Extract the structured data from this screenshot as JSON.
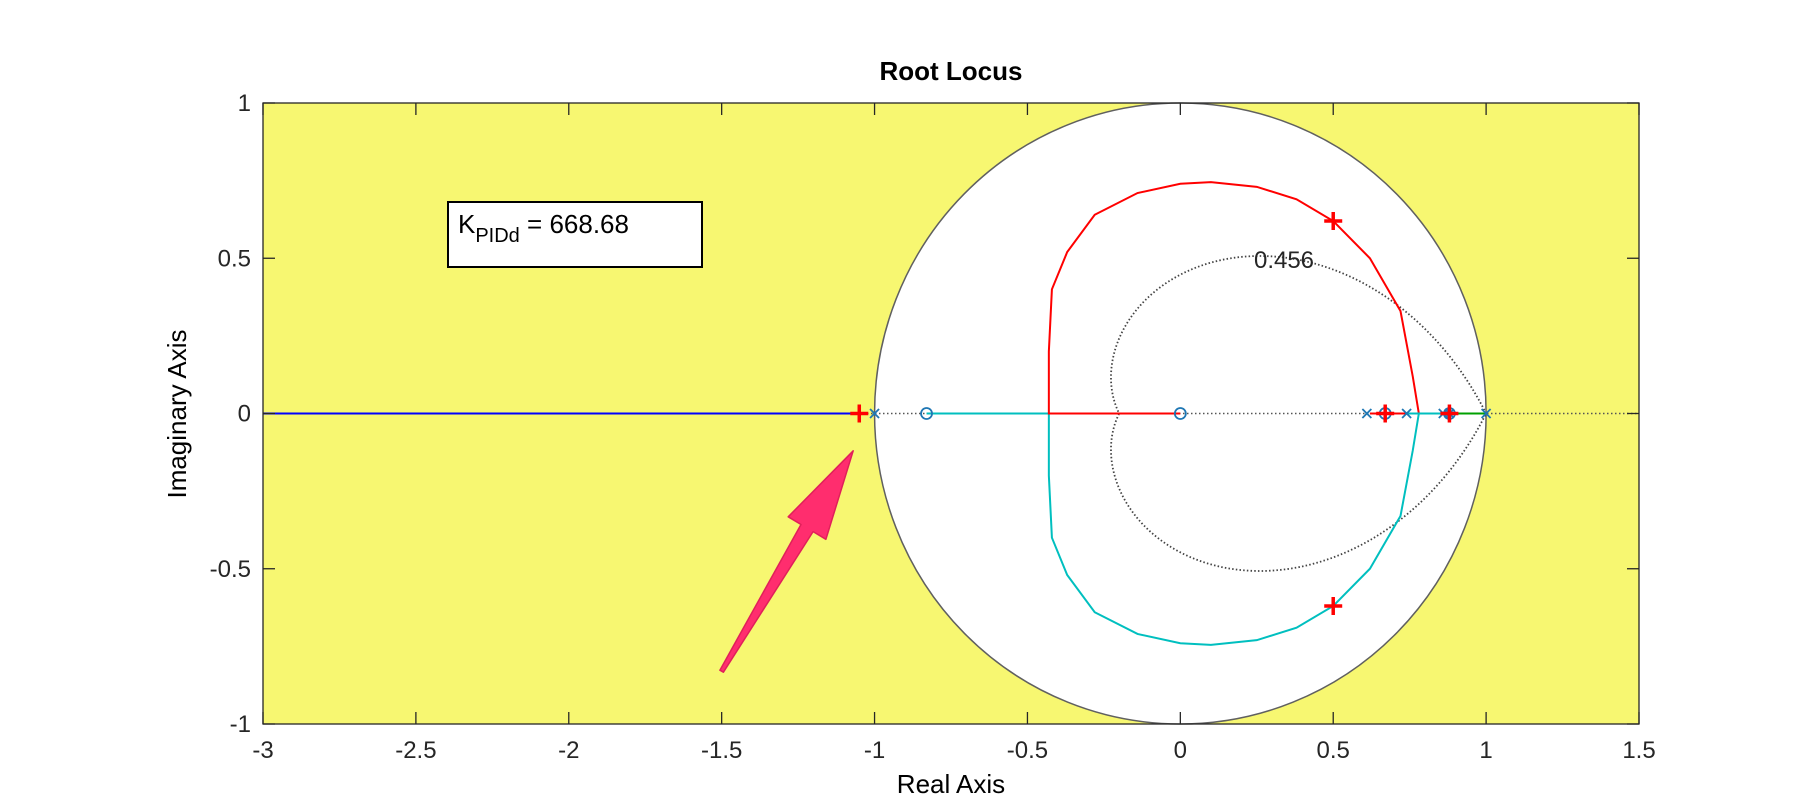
{
  "chart_data": {
    "type": "scatter",
    "title": "Root Locus",
    "xlabel": "Real Axis",
    "ylabel": "Imaginary Axis",
    "xlim": [
      -3,
      1.5
    ],
    "ylim": [
      -1,
      1
    ],
    "xticks": [
      -3,
      -2.5,
      -2,
      -1.5,
      -1,
      -0.5,
      0,
      0.5,
      1,
      1.5
    ],
    "xtick_labels": [
      "-3",
      "-2.5",
      "-2",
      "-1.5",
      "-1",
      "-0.5",
      "0",
      "0.5",
      "1",
      "1.5"
    ],
    "yticks": [
      -1,
      -0.5,
      0,
      0.5,
      1
    ],
    "ytick_labels": [
      "-1",
      "-0.5",
      "0",
      "0.5",
      "1"
    ],
    "grid": false,
    "background_color": "#f7f771",
    "unit_circle": {
      "center": [
        0,
        0
      ],
      "radius": 1,
      "fill": "#ffffff"
    },
    "damping_contour_label": "0.456",
    "annotation": {
      "text_main": "K",
      "text_sub": "PIDd",
      "text_rest": " = 668.68"
    },
    "series": [
      {
        "color": "#0000ff",
        "points": [
          [
            -3,
            0
          ],
          [
            -1.03,
            0
          ]
        ]
      },
      {
        "color": "#00bfbf",
        "points": [
          [
            -0.83,
            0
          ],
          [
            -0.43,
            0
          ],
          [
            -0.43,
            -0.2
          ],
          [
            -0.42,
            -0.4
          ],
          [
            -0.37,
            -0.52
          ],
          [
            -0.28,
            -0.64
          ],
          [
            -0.14,
            -0.71
          ],
          [
            0.0,
            -0.74
          ],
          [
            0.1,
            -0.745
          ],
          [
            0.25,
            -0.73
          ],
          [
            0.38,
            -0.69
          ],
          [
            0.5,
            -0.62
          ],
          [
            0.62,
            -0.5
          ],
          [
            0.72,
            -0.33
          ],
          [
            0.76,
            -0.12
          ],
          [
            0.78,
            0
          ]
        ]
      },
      {
        "color": "#ff0000",
        "points": [
          [
            0,
            0
          ],
          [
            -0.43,
            0
          ],
          [
            -0.43,
            0.2
          ],
          [
            -0.42,
            0.4
          ],
          [
            -0.37,
            0.52
          ],
          [
            -0.28,
            0.64
          ],
          [
            -0.14,
            0.71
          ],
          [
            0.0,
            0.74
          ],
          [
            0.1,
            0.745
          ],
          [
            0.25,
            0.73
          ],
          [
            0.38,
            0.69
          ],
          [
            0.5,
            0.62
          ],
          [
            0.62,
            0.5
          ],
          [
            0.72,
            0.33
          ],
          [
            0.76,
            0.12
          ],
          [
            0.78,
            0
          ]
        ]
      },
      {
        "color": "#ff0000",
        "points": [
          [
            0.62,
            0
          ],
          [
            0.74,
            0
          ]
        ]
      },
      {
        "color": "#00bfbf",
        "points": [
          [
            0.74,
            0
          ],
          [
            0.86,
            0
          ]
        ]
      },
      {
        "color": "#00a000",
        "points": [
          [
            0.86,
            0
          ],
          [
            1.0,
            0
          ]
        ]
      }
    ],
    "poles": [
      [
        -1.0,
        0
      ],
      [
        0.61,
        0
      ],
      [
        0.74,
        0
      ],
      [
        0.86,
        0
      ],
      [
        0.88,
        0
      ],
      [
        1.0,
        0
      ]
    ],
    "zeros": [
      [
        -0.83,
        0
      ],
      [
        0,
        0
      ],
      [
        0.67,
        0
      ],
      [
        0.88,
        0
      ]
    ],
    "closed_loop_poles": [
      [
        -1.05,
        0
      ],
      [
        0.5,
        0.62
      ],
      [
        0.5,
        -0.62
      ],
      [
        0.67,
        0
      ],
      [
        0.88,
        0
      ]
    ],
    "arrow": {
      "tail": [
        -1.5,
        -0.83
      ],
      "head": [
        -1.07,
        -0.12
      ],
      "color": "#ff2d6e"
    }
  }
}
